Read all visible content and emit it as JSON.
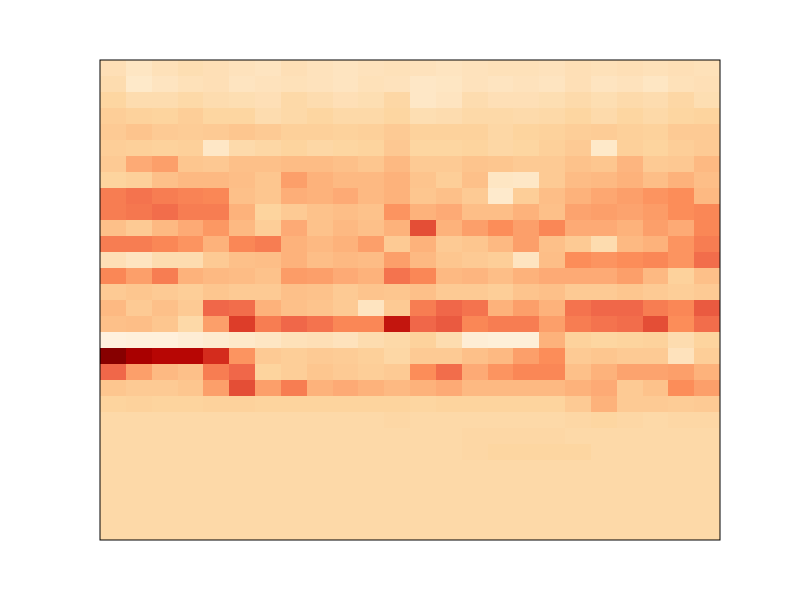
{
  "chart_data": {
    "type": "heatmap",
    "title": "",
    "xlabel": "",
    "ylabel": "",
    "x_ticks": [],
    "y_ticks": [],
    "n_cols": 24,
    "n_rows": 30,
    "colormap": "OrRd",
    "color_range": [
      0,
      1
    ],
    "colormap_stops": [
      "#fff7ec",
      "#fee8c8",
      "#fdd49e",
      "#fdbb84",
      "#fc8d59",
      "#ef6548",
      "#d7301f",
      "#b30000",
      "#7f0000"
    ],
    "values": [
      [
        0.18,
        0.14,
        0.17,
        0.19,
        0.18,
        0.16,
        0.15,
        0.18,
        0.16,
        0.15,
        0.16,
        0.17,
        0.16,
        0.15,
        0.16,
        0.17,
        0.17,
        0.16,
        0.18,
        0.17,
        0.18,
        0.17,
        0.18,
        0.17
      ],
      [
        0.2,
        0.12,
        0.15,
        0.17,
        0.18,
        0.15,
        0.16,
        0.17,
        0.16,
        0.15,
        0.17,
        0.16,
        0.13,
        0.14,
        0.16,
        0.15,
        0.16,
        0.15,
        0.18,
        0.15,
        0.16,
        0.14,
        0.17,
        0.18
      ],
      [
        0.24,
        0.2,
        0.2,
        0.22,
        0.2,
        0.19,
        0.18,
        0.22,
        0.2,
        0.18,
        0.19,
        0.23,
        0.13,
        0.15,
        0.2,
        0.18,
        0.18,
        0.19,
        0.21,
        0.19,
        0.21,
        0.2,
        0.23,
        0.19
      ],
      [
        0.28,
        0.26,
        0.25,
        0.28,
        0.24,
        0.24,
        0.2,
        0.22,
        0.24,
        0.22,
        0.22,
        0.24,
        0.19,
        0.2,
        0.22,
        0.22,
        0.21,
        0.22,
        0.24,
        0.21,
        0.24,
        0.22,
        0.24,
        0.25
      ],
      [
        0.3,
        0.33,
        0.3,
        0.29,
        0.3,
        0.32,
        0.3,
        0.27,
        0.27,
        0.26,
        0.27,
        0.3,
        0.26,
        0.26,
        0.26,
        0.23,
        0.25,
        0.26,
        0.28,
        0.29,
        0.27,
        0.26,
        0.3,
        0.3
      ],
      [
        0.28,
        0.27,
        0.26,
        0.27,
        0.13,
        0.21,
        0.23,
        0.25,
        0.23,
        0.24,
        0.25,
        0.31,
        0.24,
        0.24,
        0.25,
        0.23,
        0.24,
        0.27,
        0.3,
        0.12,
        0.27,
        0.25,
        0.28,
        0.3
      ],
      [
        0.3,
        0.42,
        0.45,
        0.32,
        0.31,
        0.35,
        0.35,
        0.37,
        0.37,
        0.35,
        0.32,
        0.38,
        0.3,
        0.3,
        0.33,
        0.32,
        0.3,
        0.3,
        0.34,
        0.32,
        0.39,
        0.3,
        0.31,
        0.38
      ],
      [
        0.25,
        0.27,
        0.35,
        0.38,
        0.38,
        0.36,
        0.32,
        0.45,
        0.4,
        0.38,
        0.38,
        0.4,
        0.33,
        0.28,
        0.35,
        0.14,
        0.13,
        0.3,
        0.37,
        0.38,
        0.4,
        0.36,
        0.4,
        0.36
      ],
      [
        0.55,
        0.58,
        0.55,
        0.53,
        0.52,
        0.35,
        0.32,
        0.41,
        0.4,
        0.42,
        0.38,
        0.4,
        0.32,
        0.35,
        0.3,
        0.11,
        0.28,
        0.36,
        0.4,
        0.43,
        0.45,
        0.48,
        0.5,
        0.38
      ],
      [
        0.55,
        0.57,
        0.6,
        0.55,
        0.55,
        0.4,
        0.25,
        0.3,
        0.34,
        0.36,
        0.34,
        0.48,
        0.4,
        0.42,
        0.36,
        0.36,
        0.4,
        0.35,
        0.44,
        0.45,
        0.44,
        0.46,
        0.5,
        0.52
      ],
      [
        0.35,
        0.3,
        0.38,
        0.42,
        0.47,
        0.38,
        0.28,
        0.42,
        0.34,
        0.38,
        0.35,
        0.4,
        0.68,
        0.4,
        0.45,
        0.5,
        0.45,
        0.52,
        0.42,
        0.42,
        0.4,
        0.45,
        0.42,
        0.52
      ],
      [
        0.55,
        0.55,
        0.52,
        0.48,
        0.4,
        0.52,
        0.55,
        0.4,
        0.38,
        0.4,
        0.45,
        0.3,
        0.4,
        0.3,
        0.32,
        0.38,
        0.45,
        0.35,
        0.3,
        0.2,
        0.38,
        0.4,
        0.48,
        0.55
      ],
      [
        0.18,
        0.15,
        0.2,
        0.2,
        0.3,
        0.35,
        0.36,
        0.4,
        0.36,
        0.38,
        0.37,
        0.45,
        0.38,
        0.32,
        0.3,
        0.28,
        0.15,
        0.36,
        0.5,
        0.48,
        0.5,
        0.52,
        0.48,
        0.6
      ],
      [
        0.52,
        0.45,
        0.55,
        0.4,
        0.38,
        0.37,
        0.34,
        0.46,
        0.45,
        0.42,
        0.4,
        0.58,
        0.52,
        0.38,
        0.39,
        0.36,
        0.4,
        0.42,
        0.42,
        0.42,
        0.45,
        0.38,
        0.26,
        0.35
      ],
      [
        0.3,
        0.32,
        0.3,
        0.28,
        0.32,
        0.3,
        0.3,
        0.35,
        0.34,
        0.3,
        0.33,
        0.32,
        0.35,
        0.3,
        0.3,
        0.28,
        0.33,
        0.35,
        0.3,
        0.3,
        0.32,
        0.3,
        0.28,
        0.3
      ],
      [
        0.38,
        0.3,
        0.35,
        0.3,
        0.62,
        0.6,
        0.4,
        0.35,
        0.33,
        0.3,
        0.15,
        0.3,
        0.55,
        0.62,
        0.58,
        0.4,
        0.45,
        0.4,
        0.58,
        0.62,
        0.62,
        0.55,
        0.52,
        0.65
      ],
      [
        0.35,
        0.36,
        0.32,
        0.22,
        0.45,
        0.72,
        0.55,
        0.62,
        0.58,
        0.52,
        0.52,
        0.82,
        0.62,
        0.65,
        0.52,
        0.55,
        0.55,
        0.45,
        0.55,
        0.58,
        0.6,
        0.68,
        0.5,
        0.6
      ],
      [
        0.05,
        0.06,
        0.06,
        0.08,
        0.1,
        0.12,
        0.14,
        0.17,
        0.18,
        0.16,
        0.2,
        0.22,
        0.26,
        0.2,
        0.08,
        0.07,
        0.07,
        0.4,
        0.26,
        0.24,
        0.25,
        0.26,
        0.2,
        0.25
      ],
      [
        0.98,
        0.9,
        0.86,
        0.86,
        0.76,
        0.48,
        0.3,
        0.28,
        0.3,
        0.29,
        0.27,
        0.23,
        0.3,
        0.3,
        0.35,
        0.38,
        0.45,
        0.5,
        0.3,
        0.32,
        0.3,
        0.3,
        0.16,
        0.28
      ],
      [
        0.62,
        0.45,
        0.38,
        0.35,
        0.55,
        0.62,
        0.25,
        0.28,
        0.32,
        0.3,
        0.28,
        0.3,
        0.5,
        0.6,
        0.42,
        0.48,
        0.52,
        0.52,
        0.35,
        0.4,
        0.44,
        0.44,
        0.45,
        0.4
      ],
      [
        0.32,
        0.3,
        0.3,
        0.32,
        0.45,
        0.68,
        0.45,
        0.55,
        0.4,
        0.42,
        0.4,
        0.38,
        0.4,
        0.42,
        0.38,
        0.38,
        0.38,
        0.38,
        0.4,
        0.42,
        0.3,
        0.34,
        0.5,
        0.45
      ],
      [
        0.25,
        0.26,
        0.25,
        0.25,
        0.26,
        0.26,
        0.25,
        0.25,
        0.25,
        0.25,
        0.25,
        0.25,
        0.24,
        0.25,
        0.25,
        0.25,
        0.25,
        0.25,
        0.3,
        0.4,
        0.3,
        0.3,
        0.29,
        0.3
      ],
      [
        0.22,
        0.22,
        0.22,
        0.22,
        0.22,
        0.22,
        0.22,
        0.22,
        0.22,
        0.22,
        0.22,
        0.23,
        0.22,
        0.22,
        0.22,
        0.22,
        0.22,
        0.22,
        0.23,
        0.24,
        0.23,
        0.22,
        0.23,
        0.23
      ],
      [
        0.22,
        0.22,
        0.22,
        0.22,
        0.22,
        0.22,
        0.22,
        0.22,
        0.22,
        0.22,
        0.22,
        0.22,
        0.22,
        0.22,
        0.23,
        0.23,
        0.23,
        0.23,
        0.22,
        0.22,
        0.22,
        0.22,
        0.22,
        0.22
      ],
      [
        0.22,
        0.22,
        0.22,
        0.22,
        0.22,
        0.22,
        0.22,
        0.22,
        0.22,
        0.22,
        0.22,
        0.22,
        0.22,
        0.22,
        0.23,
        0.24,
        0.24,
        0.24,
        0.24,
        0.22,
        0.22,
        0.22,
        0.22,
        0.22
      ],
      [
        0.22,
        0.22,
        0.22,
        0.22,
        0.22,
        0.22,
        0.22,
        0.22,
        0.22,
        0.22,
        0.22,
        0.22,
        0.22,
        0.22,
        0.22,
        0.22,
        0.22,
        0.22,
        0.22,
        0.22,
        0.22,
        0.22,
        0.22,
        0.22
      ],
      [
        0.22,
        0.22,
        0.22,
        0.22,
        0.22,
        0.22,
        0.22,
        0.22,
        0.22,
        0.22,
        0.22,
        0.22,
        0.22,
        0.22,
        0.22,
        0.22,
        0.22,
        0.22,
        0.22,
        0.22,
        0.22,
        0.22,
        0.22,
        0.22
      ],
      [
        0.22,
        0.22,
        0.22,
        0.22,
        0.22,
        0.22,
        0.22,
        0.22,
        0.22,
        0.22,
        0.22,
        0.22,
        0.22,
        0.22,
        0.22,
        0.22,
        0.22,
        0.22,
        0.22,
        0.22,
        0.22,
        0.22,
        0.22,
        0.22
      ],
      [
        0.22,
        0.22,
        0.22,
        0.22,
        0.22,
        0.22,
        0.22,
        0.22,
        0.22,
        0.22,
        0.22,
        0.22,
        0.22,
        0.22,
        0.22,
        0.22,
        0.22,
        0.22,
        0.22,
        0.22,
        0.22,
        0.22,
        0.22,
        0.22
      ],
      [
        0.22,
        0.22,
        0.22,
        0.22,
        0.22,
        0.22,
        0.22,
        0.22,
        0.22,
        0.22,
        0.22,
        0.22,
        0.22,
        0.22,
        0.22,
        0.22,
        0.22,
        0.22,
        0.22,
        0.22,
        0.22,
        0.22,
        0.22,
        0.22
      ]
    ],
    "grid": false,
    "legend": "none",
    "axis_frame_color": "#000000",
    "background_color": "#ffffff"
  }
}
